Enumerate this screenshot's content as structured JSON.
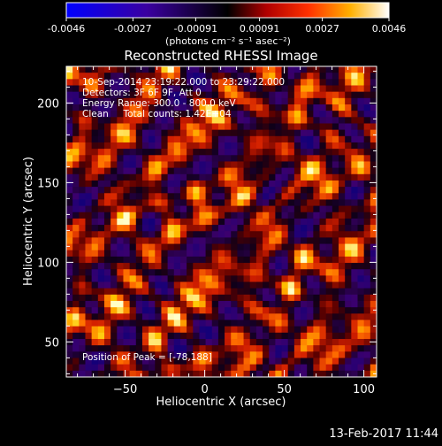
{
  "colorbar": {
    "ticks": [
      "-0.0046",
      "-0.0027",
      "-0.00091",
      "0.00091",
      "0.0027",
      "0.0046"
    ],
    "unit_label": "(photons cm⁻² s⁻¹ asec⁻²)",
    "colors": [
      "#0000ff",
      "#000000",
      "#ff0000",
      "#ffff00",
      "#ffffff"
    ]
  },
  "chart_data": {
    "type": "heatmap",
    "title": "Reconstructed RHESSI Image",
    "xlabel": "Heliocentric X (arcsec)",
    "ylabel": "Heliocentric Y (arcsec)",
    "xlim": [
      -87,
      108
    ],
    "ylim": [
      28,
      223
    ],
    "xticks": [
      -50,
      0,
      50,
      100
    ],
    "yticks": [
      50,
      100,
      150,
      200
    ],
    "annotations": [
      "10-Sep-2014 23:19:22.000 to 23:29:22.000",
      "Detectors: 3F 6F 9F, Att 0",
      "Energy Range: 300.0 - 800.0 keV",
      "Clean     Total counts: 1.42E+04"
    ],
    "peak_label": "Position of Peak = [-78,188]",
    "peak": [
      -78,
      188
    ]
  },
  "footer": {
    "timestamp": "13-Feb-2017 11:44"
  }
}
